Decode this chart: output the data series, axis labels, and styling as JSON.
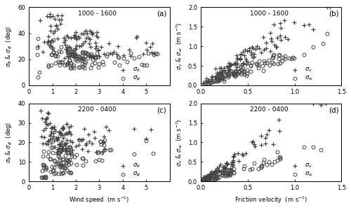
{
  "panels": [
    {
      "label": "(a)",
      "time_label": "1000 - 1600",
      "xlabel": "",
      "ylabel": "$\\sigma_\\theta$ & $\\sigma_\\phi$  (deg)",
      "xlim": [
        0,
        6
      ],
      "ylim": [
        0,
        60
      ],
      "xticks": [
        0,
        1,
        2,
        3,
        4,
        5
      ],
      "yticks": [
        0,
        20,
        40,
        60
      ],
      "leg1": "$\\sigma_\\theta$",
      "leg2": "$\\sigma_\\phi$",
      "type": "wind_angle"
    },
    {
      "label": "(b)",
      "time_label": "1000 - 1600",
      "xlabel": "",
      "ylabel": "$\\sigma_v$ & $\\sigma_w$  (m s$^{-1}$)",
      "xlim": [
        0,
        1.5
      ],
      "ylim": [
        0,
        2
      ],
      "xticks": [
        0,
        0.5,
        1.0,
        1.5
      ],
      "yticks": [
        0,
        0.5,
        1.0,
        1.5,
        2.0
      ],
      "leg1": "$\\sigma_v$",
      "leg2": "$\\sigma_w$",
      "type": "friction_vel"
    },
    {
      "label": "(c)",
      "time_label": "2200 - 0400",
      "xlabel": "Wind speed  (m s$^{-1}$)",
      "ylabel": "$\\sigma_\\theta$ & $\\sigma_\\phi$  (deg)",
      "xlim": [
        0,
        6
      ],
      "ylim": [
        0,
        40
      ],
      "xticks": [
        0,
        1,
        2,
        3,
        4,
        5
      ],
      "yticks": [
        0,
        10,
        20,
        30,
        40
      ],
      "leg1": "$\\sigma_\\theta$",
      "leg2": "$\\sigma_\\phi$",
      "type": "wind_angle"
    },
    {
      "label": "(d)",
      "time_label": "2200 - 0400",
      "xlabel": "Friction velocity  (m s$^{-1}$)",
      "ylabel": "$\\sigma_v$ & $\\sigma_w$  (m s$^{-1}$)",
      "xlim": [
        0,
        1.5
      ],
      "ylim": [
        0,
        2
      ],
      "xticks": [
        0,
        0.5,
        1.0,
        1.5
      ],
      "yticks": [
        0,
        0.5,
        1.0,
        1.5,
        2.0
      ],
      "leg1": "$\\sigma_v$",
      "leg2": "$\\sigma_w$",
      "type": "friction_vel"
    }
  ],
  "figure_bg": "#ffffff",
  "marker_color": "#444444",
  "marker_size_plus": 4.5,
  "marker_size_circle": 3.5
}
